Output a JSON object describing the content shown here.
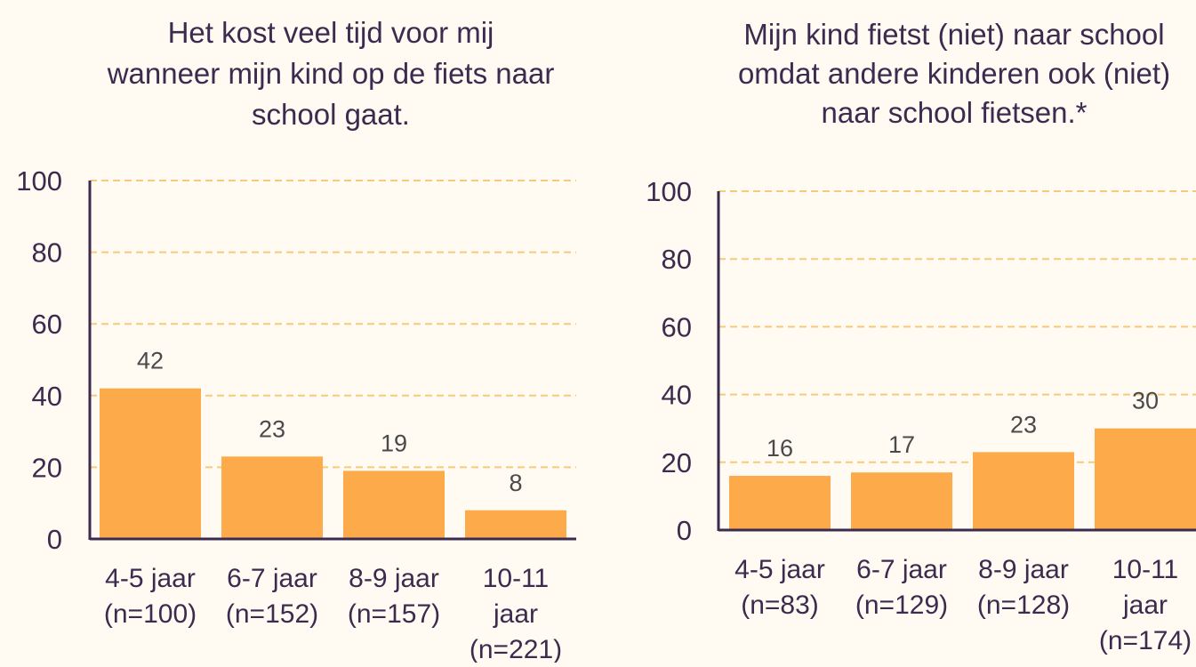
{
  "colors": {
    "background": "#fffaf2",
    "bar": "#fdab4a",
    "grid": "#f7c97a",
    "axis": "#3b2b4f",
    "text": "#3b2b4f",
    "value_label": "#4a4a4a"
  },
  "chart_data": [
    {
      "type": "bar",
      "title": "Het kost veel tijd voor mij wanneer mijn kind op de fiets naar school gaat.",
      "categories": [
        "4-5 jaar (n=100)",
        "6-7 jaar (n=152)",
        "8-9 jaar (n=157)",
        "10-11 jaar (n=221)"
      ],
      "values": [
        42,
        23,
        19,
        8
      ],
      "ylim": [
        0,
        100
      ],
      "yticks": [
        0,
        20,
        40,
        60,
        80,
        100
      ],
      "grid": true,
      "legend": "none"
    },
    {
      "type": "bar",
      "title": "Mijn kind fietst (niet) naar school omdat andere kinderen ook (niet) naar school fietsen.*",
      "categories": [
        "4-5 jaar (n=83)",
        "6-7 jaar (n=129)",
        "8-9 jaar (n=128)",
        "10-11 jaar (n=174)"
      ],
      "values": [
        16,
        17,
        23,
        30
      ],
      "ylim": [
        0,
        100
      ],
      "yticks": [
        0,
        20,
        40,
        60,
        80,
        100
      ],
      "grid": true,
      "legend": "none"
    }
  ]
}
